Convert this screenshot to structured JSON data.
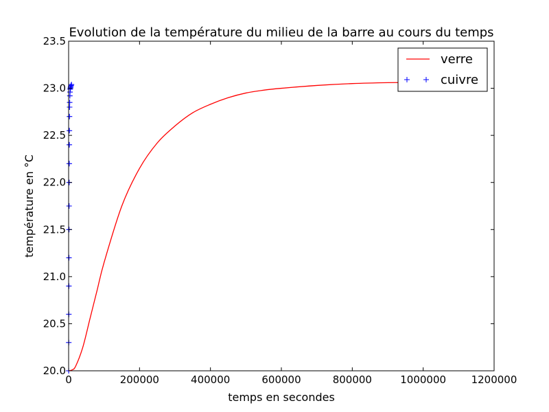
{
  "chart_data": {
    "type": "line",
    "title": "Evolution de la température du milieu de la barre au cours du temps",
    "xlabel": "temps en secondes",
    "ylabel": "température en °C",
    "xlim": [
      0,
      1200000
    ],
    "ylim": [
      20.0,
      23.5
    ],
    "xticks": [
      0,
      200000,
      400000,
      600000,
      800000,
      1000000,
      1200000
    ],
    "xtick_labels": [
      "0",
      "200000",
      "400000",
      "600000",
      "800000",
      "1000000",
      "1200000"
    ],
    "yticks": [
      20.0,
      20.5,
      21.0,
      21.5,
      22.0,
      22.5,
      23.0,
      23.5
    ],
    "ytick_labels": [
      "20.0",
      "20.5",
      "21.0",
      "21.5",
      "22.0",
      "22.5",
      "23.0",
      "23.5"
    ],
    "grid": false,
    "legend_position": "top-right",
    "series": [
      {
        "name": "verre",
        "style": "line",
        "color": "#ff0000",
        "x": [
          0,
          10000,
          20000,
          40000,
          60000,
          80000,
          100000,
          150000,
          200000,
          250000,
          300000,
          350000,
          400000,
          450000,
          500000,
          550000,
          600000,
          700000,
          800000,
          900000,
          950000
        ],
        "y": [
          20.0,
          20.01,
          20.05,
          20.25,
          20.55,
          20.85,
          21.15,
          21.75,
          22.15,
          22.42,
          22.6,
          22.74,
          22.83,
          22.9,
          22.95,
          22.98,
          23.0,
          23.03,
          23.05,
          23.06,
          23.06
        ]
      },
      {
        "name": "cuivre",
        "style": "markers",
        "marker": "+",
        "color": "#0000ff",
        "x": [
          200,
          400,
          600,
          800,
          1000,
          1200,
          1400,
          1600,
          1800,
          2000,
          2200,
          2500,
          2800,
          3000,
          3500,
          4000,
          4500,
          5000,
          5500,
          6000,
          7000,
          8000
        ],
        "y": [
          20.0,
          20.3,
          20.6,
          20.9,
          21.2,
          21.5,
          21.75,
          22.0,
          22.2,
          22.4,
          22.55,
          22.7,
          22.8,
          22.85,
          22.92,
          22.96,
          22.99,
          23.0,
          23.01,
          23.02,
          23.03,
          23.04
        ]
      }
    ]
  }
}
